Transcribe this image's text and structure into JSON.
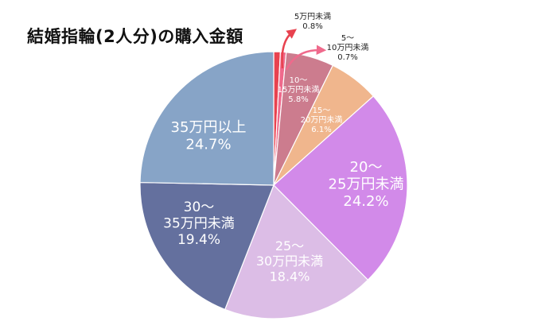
{
  "title": "結婚指輪(2人分)の購入金額",
  "chart_data": {
    "type": "pie",
    "title": "結婚指輪(2人分)の購入金額",
    "direction": "clockwise from top",
    "slices": [
      {
        "label": [
          "5万円未満"
        ],
        "value": 0.8,
        "value_label": "0.8%",
        "color": "#e8424f"
      },
      {
        "label": [
          "5〜",
          "10万円未満"
        ],
        "value": 0.7,
        "value_label": "0.7%",
        "color": "#ef6a8c"
      },
      {
        "label": [
          "10〜",
          "15万円未満"
        ],
        "value": 5.8,
        "value_label": "5.8%",
        "color": "#cc7c8e"
      },
      {
        "label": [
          "15〜",
          "20万円未満"
        ],
        "value": 6.1,
        "value_label": "6.1%",
        "color": "#f0b68d"
      },
      {
        "label": [
          "20〜",
          "25万円未満"
        ],
        "value": 24.2,
        "value_label": "24.2%",
        "color": "#d28ae9"
      },
      {
        "label": [
          "25〜",
          "30万円未満"
        ],
        "value": 18.4,
        "value_label": "18.4%",
        "color": "#dcbde6"
      },
      {
        "label": [
          "30〜",
          "35万円未満"
        ],
        "value": 19.4,
        "value_label": "19.4%",
        "color": "#64709e"
      },
      {
        "label": [
          "35万円以上"
        ],
        "value": 24.7,
        "value_label": "24.7%",
        "color": "#87a4c7"
      }
    ]
  }
}
